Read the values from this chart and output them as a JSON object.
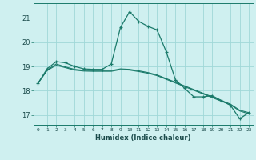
{
  "xlabel": "Humidex (Indice chaleur)",
  "ylabel": "",
  "background_color": "#cff0f0",
  "grid_color": "#a0d8d8",
  "line_color": "#1a7a6a",
  "x_ticks": [
    0,
    1,
    2,
    3,
    4,
    5,
    6,
    7,
    8,
    9,
    10,
    11,
    12,
    13,
    14,
    15,
    16,
    17,
    18,
    19,
    20,
    21,
    22,
    23
  ],
  "y_ticks": [
    17,
    18,
    19,
    20,
    21
  ],
  "ylim": [
    16.6,
    21.6
  ],
  "xlim": [
    -0.5,
    23.5
  ],
  "curve1_x": [
    0,
    1,
    2,
    3,
    4,
    5,
    6,
    7,
    8,
    9,
    10,
    11,
    12,
    13,
    14,
    15,
    16,
    17,
    18,
    19,
    20,
    21,
    22,
    23
  ],
  "curve1_y": [
    18.3,
    18.9,
    19.2,
    19.15,
    19.0,
    18.9,
    18.88,
    18.88,
    19.1,
    20.6,
    21.25,
    20.85,
    20.65,
    20.5,
    19.6,
    18.45,
    18.1,
    17.75,
    17.75,
    17.8,
    17.6,
    17.4,
    16.85,
    17.1
  ],
  "curve2_x": [
    0,
    1,
    2,
    3,
    4,
    5,
    6,
    7,
    8,
    9,
    10,
    11,
    12,
    13,
    14,
    15,
    16,
    17,
    18,
    19,
    20,
    21,
    22,
    23
  ],
  "curve2_y": [
    18.3,
    18.85,
    19.1,
    18.98,
    18.88,
    18.84,
    18.83,
    18.83,
    18.83,
    18.9,
    18.88,
    18.82,
    18.75,
    18.65,
    18.5,
    18.35,
    18.2,
    18.05,
    17.9,
    17.75,
    17.6,
    17.45,
    17.2,
    17.1
  ],
  "curve3_x": [
    0,
    1,
    2,
    3,
    4,
    5,
    6,
    7,
    8,
    9,
    10,
    11,
    12,
    13,
    14,
    15,
    16,
    17,
    18,
    19,
    20,
    21,
    22,
    23
  ],
  "curve3_y": [
    18.3,
    18.83,
    19.05,
    18.95,
    18.85,
    18.81,
    18.8,
    18.8,
    18.8,
    18.87,
    18.85,
    18.79,
    18.72,
    18.62,
    18.47,
    18.32,
    18.17,
    18.02,
    17.87,
    17.72,
    17.57,
    17.42,
    17.17,
    17.05
  ]
}
